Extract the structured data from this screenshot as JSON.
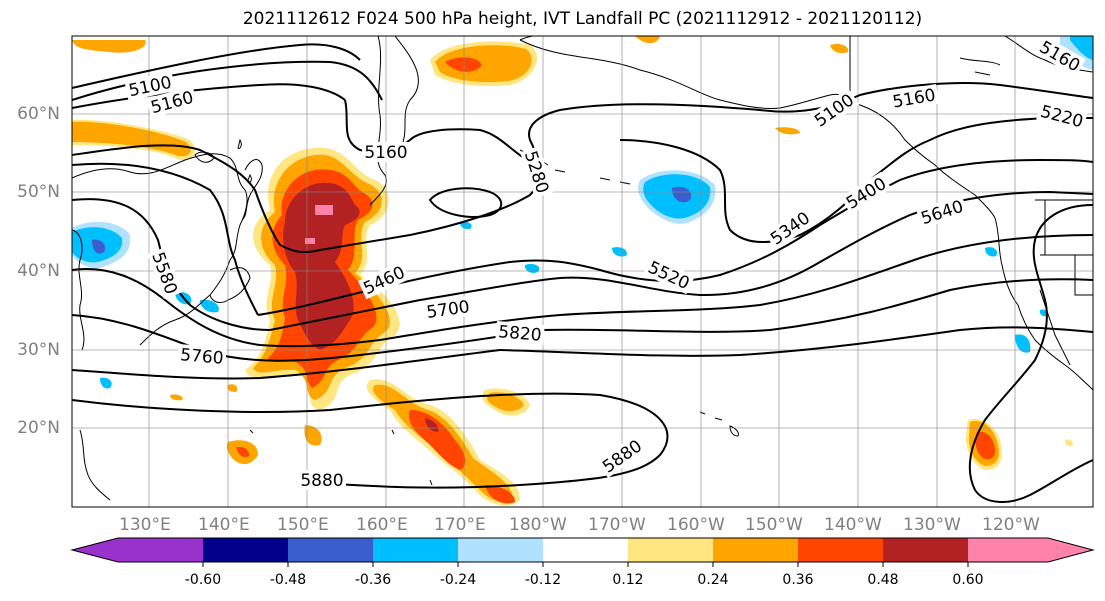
{
  "title": "2021112612 F024 500 hPa height, IVT Landfall PC (2021112912 - 2021120112)",
  "lat_labels": [
    "60°N",
    "50°N",
    "40°N",
    "30°N",
    "20°N"
  ],
  "lon_labels": [
    "130°E",
    "140°E",
    "150°E",
    "160°E",
    "170°E",
    "180°W",
    "170°W",
    "160°W",
    "150°W",
    "140°W",
    "130°W",
    "120°W"
  ],
  "contour_labels": [
    "5100",
    "5160",
    "5160",
    "5280",
    "5100",
    "5160",
    "5220",
    "5160",
    "5340",
    "5400",
    "5640",
    "5580",
    "5460",
    "5520",
    "5700",
    "5820",
    "5760",
    "5880",
    "5880"
  ],
  "colorbar": {
    "tick_labels": [
      "-0.60",
      "-0.48",
      "-0.36",
      "-0.24",
      "-0.12",
      "0.12",
      "0.24",
      "0.36",
      "0.48",
      "0.60"
    ],
    "colors": [
      "#9932cc",
      "#00008b",
      "#3a5fcd",
      "#00bfff",
      "#b0e2ff",
      "#ffffff",
      "#ffe680",
      "#ffa500",
      "#ff4500",
      "#b22222",
      "#ff82ab"
    ]
  }
}
